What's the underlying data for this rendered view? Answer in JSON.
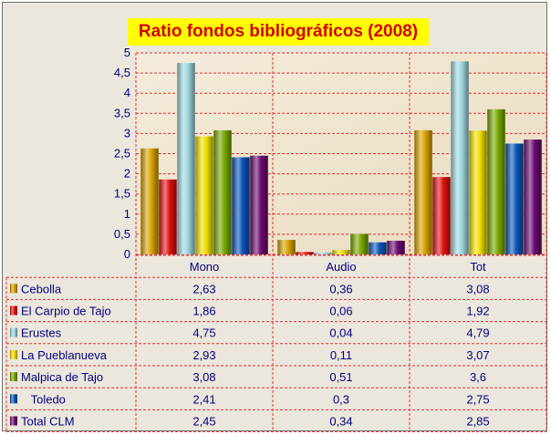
{
  "chart_data": {
    "type": "bar",
    "title": "Ratio fondos bibliográficos (2008)",
    "categories": [
      "Mono",
      "Audio",
      "Tot"
    ],
    "ylim": [
      0,
      5
    ],
    "yticks": [
      "0",
      "0,5",
      "1",
      "1,5",
      "2",
      "2,5",
      "3",
      "3,5",
      "4",
      "4,5",
      "5"
    ],
    "grid": true,
    "legend_placement": "data-table",
    "series": [
      {
        "name": "Cebolla",
        "color": "#d9a300",
        "values": [
          2.63,
          0.36,
          3.08
        ],
        "labels": [
          "2,63",
          "0,36",
          "3,08"
        ]
      },
      {
        "name": "El Carpio de Tajo",
        "color": "#e01010",
        "values": [
          1.86,
          0.06,
          1.92
        ],
        "labels": [
          "1,86",
          "0,06",
          "1,92"
        ]
      },
      {
        "name": "Erustes",
        "color": "#9fd8e0",
        "values": [
          4.75,
          0.04,
          4.79
        ],
        "labels": [
          "4,75",
          "0,04",
          "4,79"
        ]
      },
      {
        "name": "La Pueblanueva",
        "color": "#f0e000",
        "values": [
          2.93,
          0.11,
          3.07
        ],
        "labels": [
          "2,93",
          "0,11",
          "3,07"
        ]
      },
      {
        "name": "Malpica de Tajo",
        "color": "#78a800",
        "values": [
          3.08,
          0.51,
          3.6
        ],
        "labels": [
          "3,08",
          "0,51",
          "3,6"
        ]
      },
      {
        "name": "   Toledo",
        "color": "#0a55b8",
        "values": [
          2.41,
          0.3,
          2.75
        ],
        "labels": [
          "2,41",
          "0,3",
          "2,75"
        ]
      },
      {
        "name": "Total CLM",
        "color": "#6a0a70",
        "values": [
          2.45,
          0.34,
          2.85
        ],
        "labels": [
          "2,45",
          "0,34",
          "2,85"
        ]
      }
    ]
  }
}
